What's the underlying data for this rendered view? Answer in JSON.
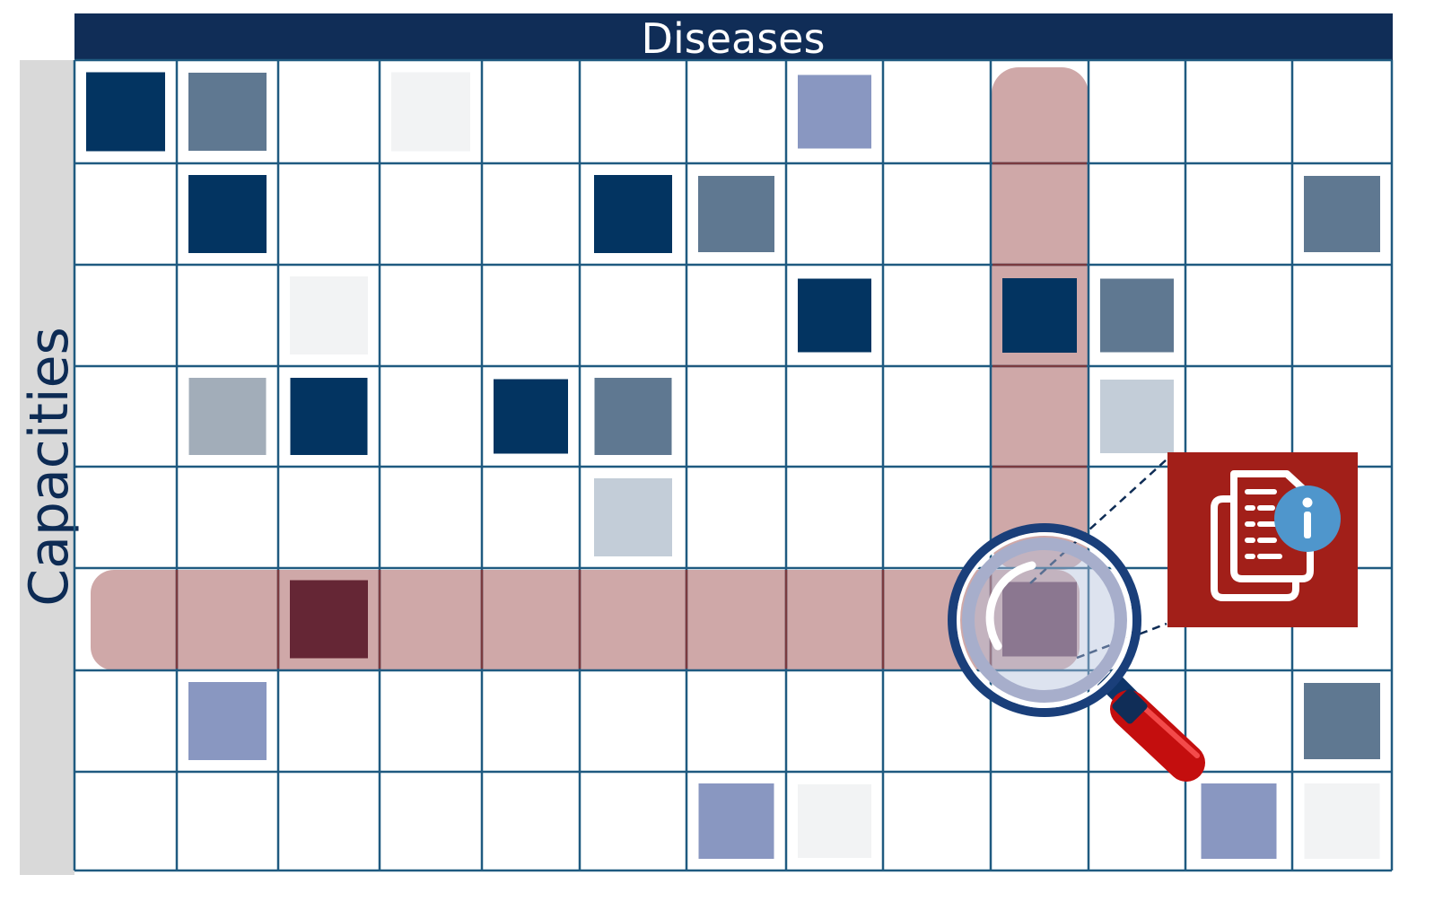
{
  "header": {
    "title": "Diseases"
  },
  "sidebar": {
    "title": "Capacities"
  },
  "matrix": {
    "rows": 8,
    "cols": 13,
    "highlight": {
      "row": 5,
      "col": 9
    },
    "cells": [
      {
        "r": 0,
        "c": 0,
        "level": "dark"
      },
      {
        "r": 0,
        "c": 1,
        "level": "mid"
      },
      {
        "r": 0,
        "c": 3,
        "level": "faint"
      },
      {
        "r": 0,
        "c": 7,
        "level": "lavender"
      },
      {
        "r": 1,
        "c": 1,
        "level": "dark"
      },
      {
        "r": 1,
        "c": 5,
        "level": "dark"
      },
      {
        "r": 1,
        "c": 6,
        "level": "mid"
      },
      {
        "r": 1,
        "c": 12,
        "level": "mid"
      },
      {
        "r": 2,
        "c": 2,
        "level": "faint"
      },
      {
        "r": 2,
        "c": 7,
        "level": "dark"
      },
      {
        "r": 2,
        "c": 9,
        "level": "dark"
      },
      {
        "r": 2,
        "c": 10,
        "level": "mid"
      },
      {
        "r": 3,
        "c": 1,
        "level": "gray"
      },
      {
        "r": 3,
        "c": 2,
        "level": "dark"
      },
      {
        "r": 3,
        "c": 4,
        "level": "dark"
      },
      {
        "r": 3,
        "c": 5,
        "level": "mid"
      },
      {
        "r": 3,
        "c": 10,
        "level": "light"
      },
      {
        "r": 4,
        "c": 5,
        "level": "light"
      },
      {
        "r": 5,
        "c": 2,
        "level": "maroon"
      },
      {
        "r": 5,
        "c": 9,
        "level": "plum"
      },
      {
        "r": 6,
        "c": 1,
        "level": "lavender"
      },
      {
        "r": 6,
        "c": 12,
        "level": "mid"
      },
      {
        "r": 7,
        "c": 6,
        "level": "lavender"
      },
      {
        "r": 7,
        "c": 7,
        "level": "faint"
      },
      {
        "r": 7,
        "c": 11,
        "level": "lavender"
      },
      {
        "r": 7,
        "c": 12,
        "level": "faint"
      }
    ]
  },
  "colors": {
    "header_bg": "#102d57",
    "grid_line": "#1f5a80",
    "sidebar_bg": "#d9d9d9",
    "highlight_band": "#cfa8a8",
    "info_box": "#a21f19",
    "info_badge": "#4f96cc",
    "magnifier_rim": "#1a3f7a",
    "magnifier_handle": "#c81414",
    "cell_levels": {
      "dark": "#033461",
      "mid": "#5f7891",
      "gray": "#a2adb9",
      "light": "#c3cdd8",
      "faint": "#f2f3f4",
      "lavender": "#8997c1",
      "maroon": "#652635",
      "plum": "#6b3b52"
    }
  },
  "icons": {
    "magnifier": "magnifying-glass-icon",
    "info_panel": "document-info-icon"
  }
}
